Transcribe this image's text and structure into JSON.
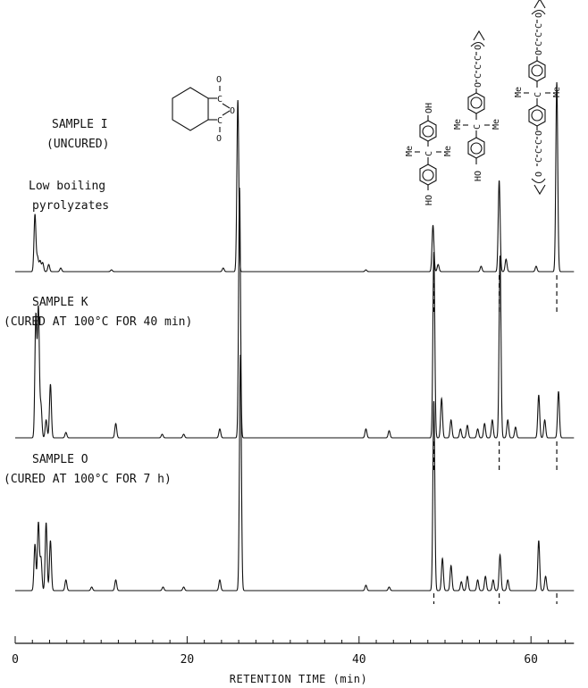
{
  "chart_data": {
    "type": "line",
    "xlabel": "RETENTION TIME (min)",
    "x_ticks": [
      0,
      20,
      40,
      60
    ],
    "xlim": [
      0,
      65
    ],
    "grid": false,
    "legend": "none",
    "series": [
      {
        "name": "SAMPLE I",
        "label_lines": [
          "SAMPLE I",
          "(UNCURED)"
        ],
        "peaks": [
          {
            "x": 2.3,
            "h": 0.32
          },
          {
            "x": 2.6,
            "h": 0.08
          },
          {
            "x": 2.9,
            "h": 0.06
          },
          {
            "x": 3.2,
            "h": 0.05
          },
          {
            "x": 3.9,
            "h": 0.04
          },
          {
            "x": 5.3,
            "h": 0.02
          },
          {
            "x": 11.2,
            "h": 0.01
          },
          {
            "x": 24.2,
            "h": 0.02
          },
          {
            "x": 25.9,
            "h": 0.96
          },
          {
            "x": 40.8,
            "h": 0.01
          },
          {
            "x": 48.6,
            "h": 0.26
          },
          {
            "x": 49.2,
            "h": 0.04
          },
          {
            "x": 54.2,
            "h": 0.03
          },
          {
            "x": 56.3,
            "h": 0.51
          },
          {
            "x": 57.1,
            "h": 0.07
          },
          {
            "x": 60.6,
            "h": 0.03
          },
          {
            "x": 63.0,
            "h": 1.06
          }
        ]
      },
      {
        "name": "SAMPLE K",
        "label_lines": [
          "SAMPLE K",
          "(CURED AT 100°C FOR 40 min)"
        ],
        "peaks": [
          {
            "x": 2.4,
            "h": 0.68
          },
          {
            "x": 2.7,
            "h": 0.72
          },
          {
            "x": 3.0,
            "h": 0.18
          },
          {
            "x": 3.6,
            "h": 0.1
          },
          {
            "x": 4.1,
            "h": 0.3
          },
          {
            "x": 5.9,
            "h": 0.03
          },
          {
            "x": 11.7,
            "h": 0.08
          },
          {
            "x": 17.1,
            "h": 0.02
          },
          {
            "x": 19.6,
            "h": 0.02
          },
          {
            "x": 23.8,
            "h": 0.05
          },
          {
            "x": 26.1,
            "h": 1.4
          },
          {
            "x": 40.8,
            "h": 0.05
          },
          {
            "x": 43.5,
            "h": 0.04
          },
          {
            "x": 48.7,
            "h": 1.04
          },
          {
            "x": 49.6,
            "h": 0.22
          },
          {
            "x": 50.7,
            "h": 0.1
          },
          {
            "x": 51.8,
            "h": 0.05
          },
          {
            "x": 52.6,
            "h": 0.07
          },
          {
            "x": 53.8,
            "h": 0.05
          },
          {
            "x": 54.6,
            "h": 0.08
          },
          {
            "x": 55.5,
            "h": 0.1
          },
          {
            "x": 56.4,
            "h": 1.02
          },
          {
            "x": 57.3,
            "h": 0.1
          },
          {
            "x": 58.2,
            "h": 0.06
          },
          {
            "x": 60.9,
            "h": 0.24
          },
          {
            "x": 61.6,
            "h": 0.1
          },
          {
            "x": 63.2,
            "h": 0.26
          }
        ]
      },
      {
        "name": "SAMPLE O",
        "label_lines": [
          "SAMPLE O",
          "(CURED AT 100°C FOR 7 h)"
        ],
        "peaks": [
          {
            "x": 2.3,
            "h": 0.26
          },
          {
            "x": 2.7,
            "h": 0.38
          },
          {
            "x": 3.0,
            "h": 0.18
          },
          {
            "x": 3.6,
            "h": 0.38
          },
          {
            "x": 4.1,
            "h": 0.28
          },
          {
            "x": 5.9,
            "h": 0.06
          },
          {
            "x": 8.9,
            "h": 0.02
          },
          {
            "x": 11.7,
            "h": 0.06
          },
          {
            "x": 17.2,
            "h": 0.02
          },
          {
            "x": 19.6,
            "h": 0.02
          },
          {
            "x": 23.8,
            "h": 0.06
          },
          {
            "x": 26.2,
            "h": 1.32
          },
          {
            "x": 40.8,
            "h": 0.03
          },
          {
            "x": 43.5,
            "h": 0.02
          },
          {
            "x": 48.7,
            "h": 1.06
          },
          {
            "x": 49.7,
            "h": 0.18
          },
          {
            "x": 50.7,
            "h": 0.14
          },
          {
            "x": 51.9,
            "h": 0.05
          },
          {
            "x": 52.6,
            "h": 0.08
          },
          {
            "x": 53.8,
            "h": 0.06
          },
          {
            "x": 54.7,
            "h": 0.08
          },
          {
            "x": 55.6,
            "h": 0.06
          },
          {
            "x": 56.4,
            "h": 0.2
          },
          {
            "x": 57.3,
            "h": 0.06
          },
          {
            "x": 60.9,
            "h": 0.28
          },
          {
            "x": 61.7,
            "h": 0.08
          }
        ]
      }
    ],
    "reference_lines_x": [
      48.7,
      56.3,
      63.0
    ],
    "annotations": {
      "low_boiling": [
        "Low boiling",
        "pyrolyzates"
      ],
      "anhydride_atoms": [
        "O",
        "C",
        "O",
        "C",
        "O"
      ],
      "bisphenol_atoms": [
        "OH",
        "Me",
        "C",
        "Me",
        "HO"
      ],
      "mono_glycidyl_atoms": [
        "O",
        "C",
        "C",
        "C",
        "O",
        "Me",
        "C",
        "Me",
        "HO"
      ],
      "di_glycidyl_atoms": [
        "O",
        "C",
        "C",
        "C",
        "O",
        "Me",
        "C",
        "Me",
        "C",
        "C",
        "C",
        "O",
        "O"
      ]
    }
  }
}
